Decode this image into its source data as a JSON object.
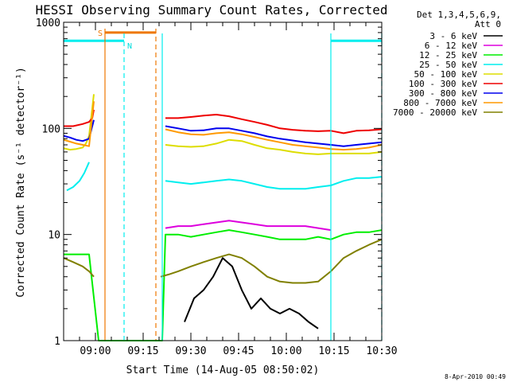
{
  "chart_data": {
    "type": "line",
    "title": "HESSI Observing Summary Count Rates, Corrected",
    "xlabel": "Start Time (14-Aug-05 08:50:02)",
    "ylabel": "Corrected Count Rate (s⁻¹ detector⁻¹)",
    "x_unit": "minutes after 08:50:02",
    "xlim": [
      0,
      100
    ],
    "ylim": [
      1,
      1000
    ],
    "yscale": "log",
    "grid": false,
    "x_ticks": [
      {
        "value": 10,
        "label": "09:00"
      },
      {
        "value": 25,
        "label": "09:15"
      },
      {
        "value": 40,
        "label": "09:30"
      },
      {
        "value": 55,
        "label": "09:45"
      },
      {
        "value": 70,
        "label": "10:00"
      },
      {
        "value": 85,
        "label": "10:15"
      },
      {
        "value": 100,
        "label": "10:30"
      }
    ],
    "y_ticks": [
      {
        "value": 1,
        "label": "1"
      },
      {
        "value": 10,
        "label": "10"
      },
      {
        "value": 100,
        "label": "100"
      },
      {
        "value": 1000,
        "label": "1000"
      }
    ],
    "legend": {
      "placement": "top-right, outside plot",
      "header": [
        "Det 1,3,4,5,6,9,",
        "Att 0"
      ]
    },
    "series": [
      {
        "name": "3 - 6 keV",
        "color": "#000000",
        "x": [
          38,
          41,
          44,
          47,
          50,
          53,
          56,
          59,
          62,
          65,
          68,
          71,
          74,
          77,
          80
        ],
        "y": [
          1.5,
          2.5,
          3,
          4,
          6,
          5,
          3,
          2,
          2.5,
          2,
          1.8,
          2,
          1.8,
          1.5,
          1.3
        ]
      },
      {
        "name": "6 - 12 keV",
        "color": "#dd00dd",
        "x": [
          32,
          36,
          40,
          44,
          48,
          52,
          56,
          60,
          64,
          68,
          72,
          76,
          80,
          84
        ],
        "y": [
          11.5,
          12,
          12,
          12.5,
          13,
          13.5,
          13,
          12.5,
          12,
          12,
          12,
          12,
          11.5,
          11
        ]
      },
      {
        "name": "12 - 25 keV",
        "color": "#00ee00",
        "x": [
          0,
          2,
          4,
          6,
          8,
          11,
          15,
          19,
          23,
          27,
          31,
          32,
          36,
          40,
          44,
          48,
          52,
          56,
          60,
          64,
          68,
          72,
          76,
          80,
          84,
          88,
          92,
          96,
          100
        ],
        "y": [
          6.5,
          6.5,
          6.5,
          6.5,
          6.5,
          1,
          1,
          1,
          1,
          1,
          1,
          10,
          10,
          9.5,
          10,
          10.5,
          11,
          10.5,
          10,
          9.5,
          9,
          9,
          9,
          9.5,
          9,
          10,
          10.5,
          10.5,
          11
        ]
      },
      {
        "name": "25 - 50 keV",
        "color": "#00eeee",
        "x": [
          1,
          3,
          5,
          6.5,
          8,
          32,
          36,
          40,
          44,
          48,
          52,
          56,
          60,
          64,
          68,
          72,
          76,
          80,
          84,
          88,
          92,
          96,
          100
        ],
        "y": [
          26,
          28,
          32,
          38,
          48,
          32,
          31,
          30,
          31,
          32,
          33,
          32,
          30,
          28,
          27,
          27,
          27,
          28,
          29,
          32,
          34,
          34,
          35
        ]
      },
      {
        "name": "50 - 100 keV",
        "color": "#dddd00",
        "x": [
          0,
          2,
          4,
          6,
          7,
          8,
          9.5,
          32,
          36,
          40,
          44,
          48,
          52,
          56,
          60,
          64,
          68,
          72,
          76,
          80,
          84,
          88,
          92,
          96,
          100
        ],
        "y": [
          65,
          63,
          64,
          66,
          72,
          85,
          210,
          70,
          68,
          67,
          68,
          72,
          78,
          76,
          70,
          65,
          63,
          60,
          58,
          57,
          58,
          58,
          58,
          58,
          60
        ]
      },
      {
        "name": "100 - 300 keV",
        "color": "#ee0000",
        "x": [
          0,
          3,
          6,
          8,
          9,
          9.5,
          32,
          36,
          40,
          44,
          48,
          52,
          56,
          60,
          64,
          68,
          72,
          76,
          80,
          84,
          88,
          92,
          96,
          100
        ],
        "y": [
          105,
          105,
          110,
          115,
          125,
          150,
          125,
          125,
          128,
          132,
          135,
          130,
          122,
          115,
          108,
          100,
          97,
          95,
          94,
          95,
          90,
          95,
          96,
          98
        ]
      },
      {
        "name": "300 - 800 keV",
        "color": "#0000ee",
        "x": [
          0,
          2,
          4,
          6,
          8,
          9.5,
          32,
          36,
          40,
          44,
          48,
          52,
          56,
          60,
          64,
          68,
          72,
          76,
          80,
          84,
          88,
          92,
          96,
          100
        ],
        "y": [
          85,
          82,
          78,
          76,
          80,
          120,
          105,
          100,
          95,
          96,
          100,
          100,
          95,
          90,
          84,
          80,
          77,
          74,
          72,
          70,
          68,
          70,
          72,
          74
        ]
      },
      {
        "name": "800 - 7000 keV",
        "color": "#ff9900",
        "x": [
          0,
          2,
          4,
          6,
          8,
          9.5,
          32,
          36,
          40,
          44,
          48,
          52,
          56,
          60,
          64,
          68,
          72,
          76,
          80,
          84,
          88,
          92,
          96,
          100
        ],
        "y": [
          78,
          75,
          72,
          70,
          68,
          180,
          98,
          92,
          88,
          87,
          90,
          92,
          88,
          83,
          78,
          74,
          70,
          68,
          66,
          64,
          63,
          64,
          66,
          70
        ]
      },
      {
        "name": "7000 - 20000 keV",
        "color": "#808000",
        "x": [
          0,
          3,
          6,
          8,
          9.5,
          30.5,
          33,
          36,
          40,
          44,
          48,
          52,
          56,
          60,
          64,
          68,
          72,
          76,
          80,
          84,
          88,
          92,
          96,
          100
        ],
        "y": [
          6,
          5.5,
          5,
          4.5,
          4,
          4,
          4.2,
          4.5,
          5,
          5.5,
          6,
          6.5,
          6,
          5,
          4,
          3.6,
          3.5,
          3.5,
          3.6,
          4.5,
          6,
          7,
          8,
          9
        ]
      }
    ],
    "annotations": {
      "saa_label": "S",
      "night_label": "N",
      "saa_interval": [
        13,
        29
      ],
      "saa_level": 800,
      "night_intervals": [
        [
          0,
          19
        ],
        [
          84,
          100
        ]
      ],
      "night_level": 670,
      "attenuator_markers": [
        {
          "x": 13,
          "style": "solid"
        },
        {
          "x": 29,
          "style": "dashed"
        }
      ],
      "night_markers": [
        {
          "x": 19,
          "style": "dashed"
        },
        {
          "x": 31,
          "style": "solid"
        },
        {
          "x": 84,
          "style": "solid"
        },
        {
          "x": 100,
          "style": "dashed"
        }
      ]
    }
  },
  "footer": {
    "timestamp": "8-Apr-2010 00:49"
  }
}
